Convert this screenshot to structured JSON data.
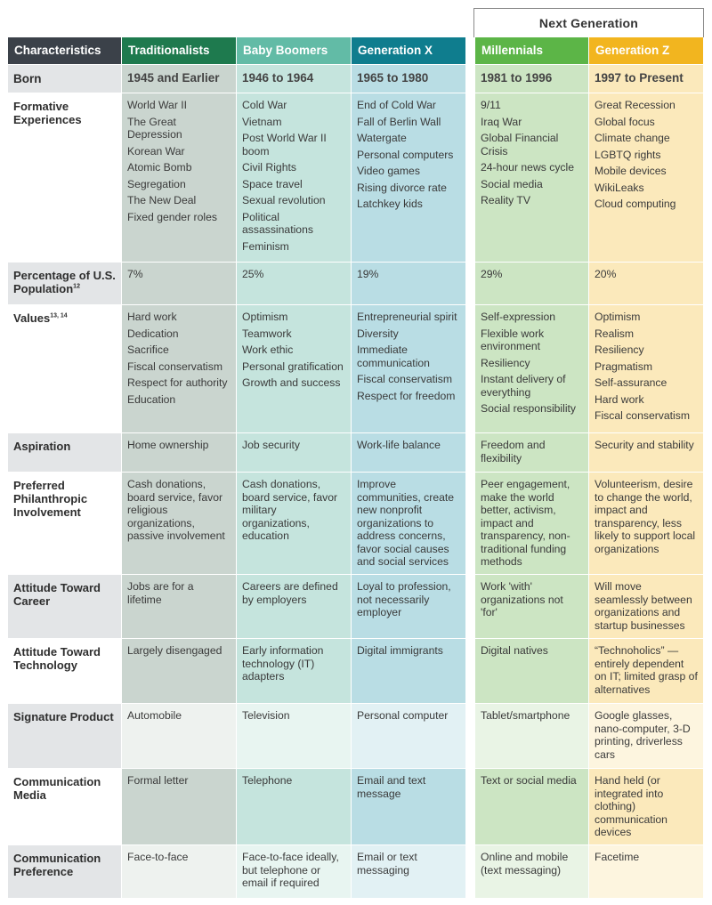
{
  "next_generation_label": "Next Generation",
  "headers": [
    "Characteristics",
    "Traditionalists",
    "Baby Boomers",
    "Generation X",
    "Millennials",
    "Generation Z"
  ],
  "born": {
    "label": "Born",
    "values": [
      "1945 and Earlier",
      "1946 to 1964",
      "1965 to 1980",
      "1981 to 1996",
      "1997 to Present"
    ]
  },
  "formative": {
    "label": "Formative Experiences",
    "values": [
      [
        "World War II",
        "The Great Depression",
        "Korean War",
        "Atomic Bomb",
        "Segregation",
        "The New Deal",
        "Fixed gender roles"
      ],
      [
        "Cold War",
        "Vietnam",
        "Post World War II boom",
        "Civil Rights",
        "Space travel",
        "Sexual revolution",
        "Political assassinations",
        "Feminism"
      ],
      [
        "End of Cold War",
        "Fall of Berlin Wall",
        "Watergate",
        "Personal computers",
        "Video games",
        "Rising divorce rate",
        "Latchkey kids"
      ],
      [
        "9/11",
        "Iraq War",
        "Global Financial Crisis",
        "24-hour news cycle",
        "Social media",
        "Reality TV"
      ],
      [
        "Great Recession",
        "Global focus",
        "Climate change",
        "LGBTQ rights",
        "Mobile devices",
        "WikiLeaks",
        "Cloud computing"
      ]
    ]
  },
  "percentage": {
    "label": "Percentage of U.S. Population",
    "label_sup": "12",
    "values": [
      "7%",
      "25%",
      "19%",
      "29%",
      "20%"
    ]
  },
  "values_row": {
    "label": "Values",
    "label_sup": "13, 14",
    "values": [
      [
        "Hard work",
        "Dedication",
        "Sacrifice",
        "Fiscal conservatism",
        "Respect for authority",
        "Education"
      ],
      [
        "Optimism",
        "Teamwork",
        "Work ethic",
        "Personal gratification",
        "Growth and success"
      ],
      [
        "Entrepreneurial spirit",
        "Diversity",
        "Immediate communication",
        "Fiscal conservatism",
        "Respect for freedom"
      ],
      [
        "Self-expression",
        "Flexible work environment",
        "Resiliency",
        "Instant delivery of everything",
        "Social responsibility"
      ],
      [
        "Optimism",
        "Realism",
        "Resiliency",
        "Pragmatism",
        "Self-assurance",
        "Hard work",
        "Fiscal conservatism"
      ]
    ]
  },
  "aspiration": {
    "label": "Aspiration",
    "values": [
      "Home ownership",
      "Job security",
      "Work-life balance",
      "Freedom and flexibility",
      "Security and stability"
    ]
  },
  "philanthropy": {
    "label": "Preferred Philanthropic Involvement",
    "values": [
      "Cash donations, board service, favor religious organizations, passive involvement",
      "Cash donations, board service, favor military organizations, education",
      "Improve communities, create new nonprofit organizations to address concerns, favor social causes and social services",
      "Peer engagement, make the world better, activism, impact and transparency, non-traditional funding methods",
      "Volunteerism, desire to change the world, impact and transparency, less likely to support local organizations"
    ]
  },
  "career": {
    "label": "Attitude Toward Career",
    "values": [
      "Jobs are for a lifetime",
      "Careers are defined by employers",
      "Loyal to profession, not necessarily employer",
      "Work 'with' organizations not 'for'",
      "Will move seamlessly between organizations and startup businesses"
    ]
  },
  "technology": {
    "label": "Attitude Toward Technology",
    "values": [
      "Largely disengaged",
      "Early information technology (IT) adapters",
      "Digital immigrants",
      "Digital natives",
      "“Technoholics” — entirely dependent on IT; limited grasp of alternatives"
    ]
  },
  "product": {
    "label": "Signature Product",
    "values": [
      "Automobile",
      "Television",
      "Personal computer",
      "Tablet/smartphone",
      "Google glasses, nano-computer, 3-D printing, driverless cars"
    ]
  },
  "media": {
    "label": "Communication Media",
    "values": [
      "Formal letter",
      "Telephone",
      "Email and text message",
      "Text or social media",
      "Hand held (or integrated into clothing) communication devices"
    ]
  },
  "preference": {
    "label": "Communication Preference",
    "values": [
      "Face-to-face",
      "Face-to-face ideally, but telephone or email if required",
      "Email or text messaging",
      "Online and mobile (text messaging)",
      "Facetime"
    ]
  }
}
